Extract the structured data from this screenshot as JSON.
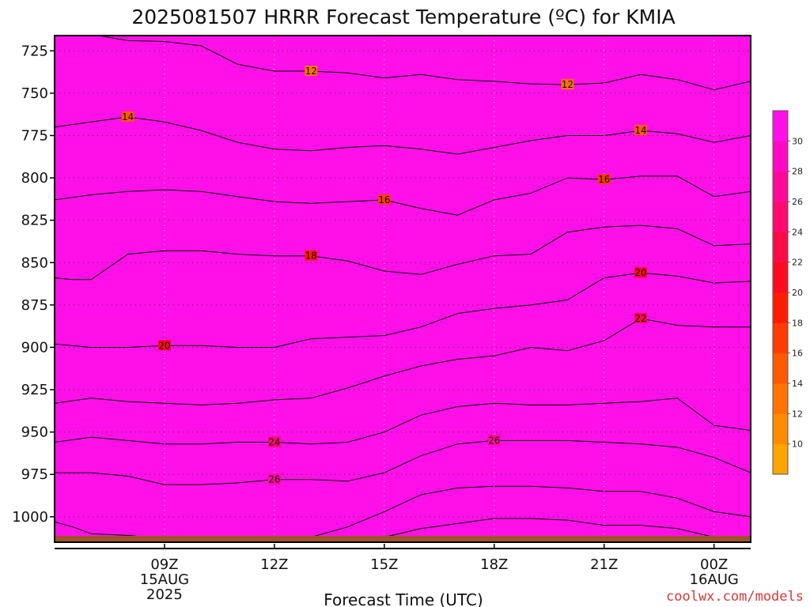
{
  "chart_data": {
    "type": "heatmap",
    "title": "2025081507 HRRR Forecast Temperature (ºC) for KMIA",
    "xlabel": "Forecast Time (UTC)",
    "credit": "coolwx.com/models",
    "y_axis": {
      "quantity": "pressure (hPa)",
      "inverted": true,
      "range": [
        1015,
        716
      ],
      "ticks": [
        725,
        750,
        775,
        800,
        825,
        850,
        875,
        900,
        925,
        950,
        975,
        1000
      ]
    },
    "x_axis": {
      "range": [
        "15AUG 06Z",
        "16AUG 01Z"
      ],
      "ticks": [
        {
          "label": "09Z",
          "sub": [
            "15AUG",
            "2025"
          ],
          "hour": 9
        },
        {
          "label": "12Z",
          "sub": [],
          "hour": 12
        },
        {
          "label": "15Z",
          "sub": [],
          "hour": 15
        },
        {
          "label": "18Z",
          "sub": [],
          "hour": 18
        },
        {
          "label": "21Z",
          "sub": [],
          "hour": 21
        },
        {
          "label": "00Z",
          "sub": [
            "16AUG"
          ],
          "hour": 24
        }
      ]
    },
    "grid": "dotted",
    "colorbar": {
      "levels": [
        8,
        10,
        12,
        14,
        16,
        18,
        20,
        22,
        24,
        26,
        28,
        30,
        32
      ],
      "tick_labels": [
        10,
        12,
        14,
        16,
        18,
        20,
        22,
        24,
        26,
        28,
        30
      ],
      "colors": [
        "#FFA500",
        "#FF8C00",
        "#FF7400",
        "#FF5A00",
        "#FF3C00",
        "#FF1C00",
        "#FF0A1E",
        "#FF0A46",
        "#FF0A6E",
        "#FF0A96",
        "#FF0AC4",
        "#FF10E8"
      ]
    },
    "contours": [
      {
        "value": 10,
        "labels": [],
        "points": [
          [
            6,
            725
          ],
          [
            6.5,
            725
          ],
          [
            7,
            725
          ],
          [
            8,
            725
          ],
          [
            9,
            725
          ],
          [
            10,
            725
          ],
          [
            11,
            725
          ],
          [
            12,
            725
          ],
          [
            13,
            725
          ],
          [
            14,
            725
          ],
          [
            15,
            725
          ],
          [
            16,
            725
          ],
          [
            17,
            725
          ],
          [
            18,
            725
          ],
          [
            19,
            725
          ],
          [
            20,
            725
          ],
          [
            21,
            725
          ],
          [
            22,
            725
          ],
          [
            23,
            725
          ],
          [
            24,
            725
          ],
          [
            25,
            725
          ]
        ]
      },
      {
        "value": 12,
        "labels": [],
        "points": [
          [
            7.2,
            716
          ],
          [
            8,
            719
          ],
          [
            9,
            719.5
          ],
          [
            10,
            722
          ],
          [
            11,
            733
          ],
          [
            12,
            737
          ],
          [
            13,
            737
          ],
          [
            14,
            738
          ],
          [
            15,
            741
          ],
          [
            16,
            739
          ],
          [
            17,
            742
          ],
          [
            18,
            743
          ],
          [
            19,
            744.5
          ],
          [
            20,
            745
          ],
          [
            21,
            744
          ],
          [
            22,
            739
          ],
          [
            23,
            742
          ],
          [
            24,
            748
          ],
          [
            25,
            743
          ]
        ]
      },
      {
        "value": 14,
        "labels": [],
        "points": [
          [
            6,
            770
          ],
          [
            7,
            767
          ],
          [
            8,
            764
          ],
          [
            9,
            767
          ],
          [
            10,
            772
          ],
          [
            11,
            779
          ],
          [
            12,
            783
          ],
          [
            13,
            784
          ],
          [
            14,
            782
          ],
          [
            15,
            781
          ],
          [
            16,
            783
          ],
          [
            17,
            786
          ],
          [
            18,
            782
          ],
          [
            19,
            778
          ],
          [
            20,
            775
          ],
          [
            21,
            775
          ],
          [
            22,
            772
          ],
          [
            23,
            774
          ],
          [
            24,
            779
          ],
          [
            25,
            775
          ]
        ]
      },
      {
        "value": 16,
        "labels": [],
        "points": [
          [
            6,
            813
          ],
          [
            7,
            810
          ],
          [
            8,
            808
          ],
          [
            9,
            807
          ],
          [
            10,
            808
          ],
          [
            11,
            811
          ],
          [
            12,
            814
          ],
          [
            13,
            815
          ],
          [
            14,
            814
          ],
          [
            15,
            813
          ],
          [
            16,
            818
          ],
          [
            17,
            822
          ],
          [
            18,
            813
          ],
          [
            19,
            809
          ],
          [
            20,
            800
          ],
          [
            21,
            801
          ],
          [
            22,
            799
          ],
          [
            23,
            799
          ],
          [
            24,
            811
          ],
          [
            25,
            808
          ]
        ]
      },
      {
        "value": 18,
        "labels": [],
        "points": [
          [
            6,
            859
          ],
          [
            6.5,
            860
          ],
          [
            7,
            860
          ],
          [
            8,
            845
          ],
          [
            9,
            843
          ],
          [
            10,
            843
          ],
          [
            11,
            845
          ],
          [
            12,
            846
          ],
          [
            13,
            846
          ],
          [
            14,
            849
          ],
          [
            15,
            855
          ],
          [
            16,
            857
          ],
          [
            17,
            851
          ],
          [
            18,
            846
          ],
          [
            19,
            845
          ],
          [
            20,
            832
          ],
          [
            21,
            829
          ],
          [
            22,
            828
          ],
          [
            23,
            830
          ],
          [
            24,
            840
          ],
          [
            25,
            839
          ]
        ]
      },
      {
        "value": 20,
        "labels": [],
        "points": [
          [
            6,
            898
          ],
          [
            7,
            900
          ],
          [
            8,
            900
          ],
          [
            9,
            899
          ],
          [
            10,
            899
          ],
          [
            11,
            900
          ],
          [
            12,
            900
          ],
          [
            13,
            895
          ],
          [
            14,
            894
          ],
          [
            15,
            893
          ],
          [
            16,
            888
          ],
          [
            17,
            880
          ],
          [
            18,
            877
          ],
          [
            19,
            875
          ],
          [
            20,
            872
          ],
          [
            21,
            859
          ],
          [
            22,
            856
          ],
          [
            23,
            858
          ],
          [
            24,
            862
          ],
          [
            25,
            861
          ]
        ]
      },
      {
        "value": 22,
        "labels": [],
        "points": [
          [
            6,
            933
          ],
          [
            7,
            930
          ],
          [
            8,
            932
          ],
          [
            9,
            933
          ],
          [
            10,
            934
          ],
          [
            11,
            933
          ],
          [
            12,
            931
          ],
          [
            13,
            930
          ],
          [
            14,
            924
          ],
          [
            15,
            917
          ],
          [
            16,
            911
          ],
          [
            17,
            907
          ],
          [
            18,
            905
          ],
          [
            19,
            900
          ],
          [
            20,
            902
          ],
          [
            21,
            896
          ],
          [
            22,
            883
          ],
          [
            23,
            887
          ],
          [
            24,
            888
          ],
          [
            25,
            888
          ]
        ]
      },
      {
        "value": 24,
        "labels": [],
        "points": [
          [
            6,
            956
          ],
          [
            7,
            953
          ],
          [
            8,
            955
          ],
          [
            9,
            957
          ],
          [
            10,
            957
          ],
          [
            11,
            956
          ],
          [
            12,
            956
          ],
          [
            13,
            957
          ],
          [
            14,
            956
          ],
          [
            15,
            950
          ],
          [
            16,
            940
          ],
          [
            17,
            935
          ],
          [
            18,
            933
          ],
          [
            19,
            934
          ],
          [
            20,
            934
          ],
          [
            21,
            933
          ],
          [
            22,
            932
          ],
          [
            23,
            930
          ],
          [
            24,
            946
          ],
          [
            25,
            949
          ]
        ]
      },
      {
        "value": 26,
        "labels": [],
        "points": [
          [
            6,
            974
          ],
          [
            7,
            974
          ],
          [
            8,
            976
          ],
          [
            9,
            981
          ],
          [
            10,
            981
          ],
          [
            11,
            980
          ],
          [
            12,
            978
          ],
          [
            13,
            978
          ],
          [
            14,
            979
          ],
          [
            15,
            974
          ],
          [
            16,
            964
          ],
          [
            17,
            957
          ],
          [
            18,
            955
          ],
          [
            19,
            955
          ],
          [
            20,
            955
          ],
          [
            21,
            956
          ],
          [
            22,
            957
          ],
          [
            23,
            959
          ],
          [
            24,
            965
          ],
          [
            25,
            974
          ]
        ]
      },
      {
        "value": 28,
        "labels": [],
        "points": [
          [
            6,
            1003
          ],
          [
            6.5,
            1006
          ],
          [
            7,
            1010
          ],
          [
            8,
            1011
          ],
          [
            9,
            1013
          ],
          [
            10,
            1013
          ],
          [
            11,
            1013
          ],
          [
            12,
            1013
          ],
          [
            13,
            1012
          ],
          [
            14,
            1006
          ],
          [
            15,
            997
          ],
          [
            16,
            987
          ],
          [
            17,
            983
          ],
          [
            18,
            982
          ],
          [
            19,
            982
          ],
          [
            20,
            983
          ],
          [
            21,
            985
          ],
          [
            22,
            985
          ],
          [
            23,
            989
          ],
          [
            24,
            997
          ],
          [
            25,
            1000
          ]
        ]
      },
      {
        "value": 30,
        "labels": [],
        "points": [
          [
            14,
            1015
          ],
          [
            15,
            1012
          ],
          [
            16,
            1007
          ],
          [
            17,
            1004
          ],
          [
            18,
            1001
          ],
          [
            19,
            1001
          ],
          [
            20,
            1002
          ],
          [
            21,
            1005
          ],
          [
            22,
            1005
          ],
          [
            23,
            1007
          ],
          [
            24,
            1012
          ],
          [
            25,
            1014
          ]
        ]
      }
    ],
    "contour_labels": [
      {
        "value": 12,
        "hour": 13,
        "p": 737
      },
      {
        "value": 12,
        "hour": 20,
        "p": 745
      },
      {
        "value": 14,
        "hour": 8,
        "p": 764
      },
      {
        "value": 14,
        "hour": 22,
        "p": 772
      },
      {
        "value": 16,
        "hour": 15,
        "p": 813
      },
      {
        "value": 16,
        "hour": 21,
        "p": 801
      },
      {
        "value": 18,
        "hour": 13,
        "p": 846
      },
      {
        "value": 20,
        "hour": 9,
        "p": 899
      },
      {
        "value": 20,
        "hour": 22,
        "p": 856
      },
      {
        "value": 22,
        "hour": 22,
        "p": 883
      },
      {
        "value": 24,
        "hour": 12,
        "p": 956
      },
      {
        "value": 26,
        "hour": 12,
        "p": 978
      },
      {
        "value": 26,
        "hour": 18,
        "p": 955
      }
    ],
    "surface_color": "#A0522D"
  }
}
